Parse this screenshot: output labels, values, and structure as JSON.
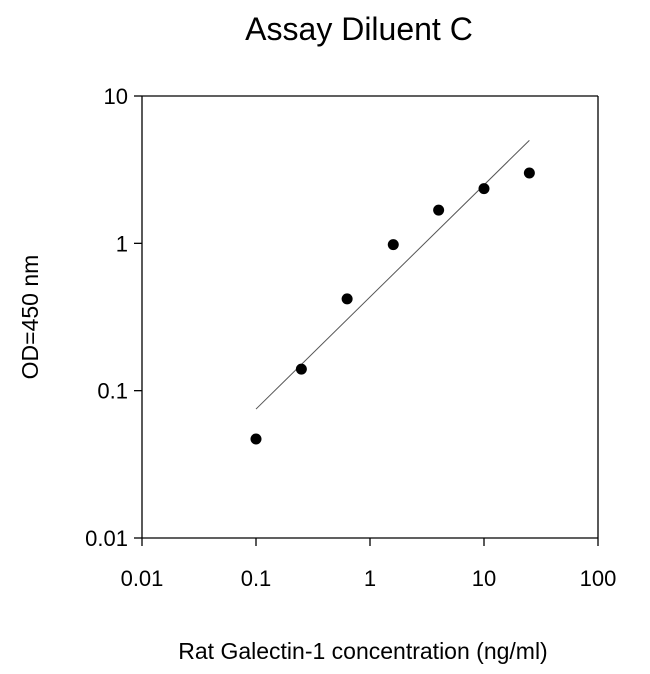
{
  "chart_data": {
    "type": "scatter",
    "title": "Assay Diluent C",
    "xlabel": "Rat Galectin-1 concentration (ng/ml)",
    "ylabel": "OD=450 nm",
    "xscale": "log",
    "yscale": "log",
    "xlim": [
      0.01,
      100
    ],
    "ylim": [
      0.01,
      10
    ],
    "xticks": [
      "0.01",
      "0.1",
      "1",
      "10",
      "100"
    ],
    "yticks": [
      "0.01",
      "0.1",
      "1",
      "10"
    ],
    "grid": false,
    "legend": "none",
    "points": [
      {
        "x": 0.1,
        "y": 0.047
      },
      {
        "x": 0.25,
        "y": 0.14
      },
      {
        "x": 0.63,
        "y": 0.42
      },
      {
        "x": 1.6,
        "y": 0.98
      },
      {
        "x": 4,
        "y": 1.68
      },
      {
        "x": 10,
        "y": 2.35
      },
      {
        "x": 25,
        "y": 3.0
      }
    ],
    "fit_line": {
      "x": [
        0.1,
        25
      ],
      "y": [
        0.075,
        5.0
      ]
    },
    "colors": {
      "marker": "#000000",
      "line": "#555555",
      "axis": "#000000"
    }
  }
}
